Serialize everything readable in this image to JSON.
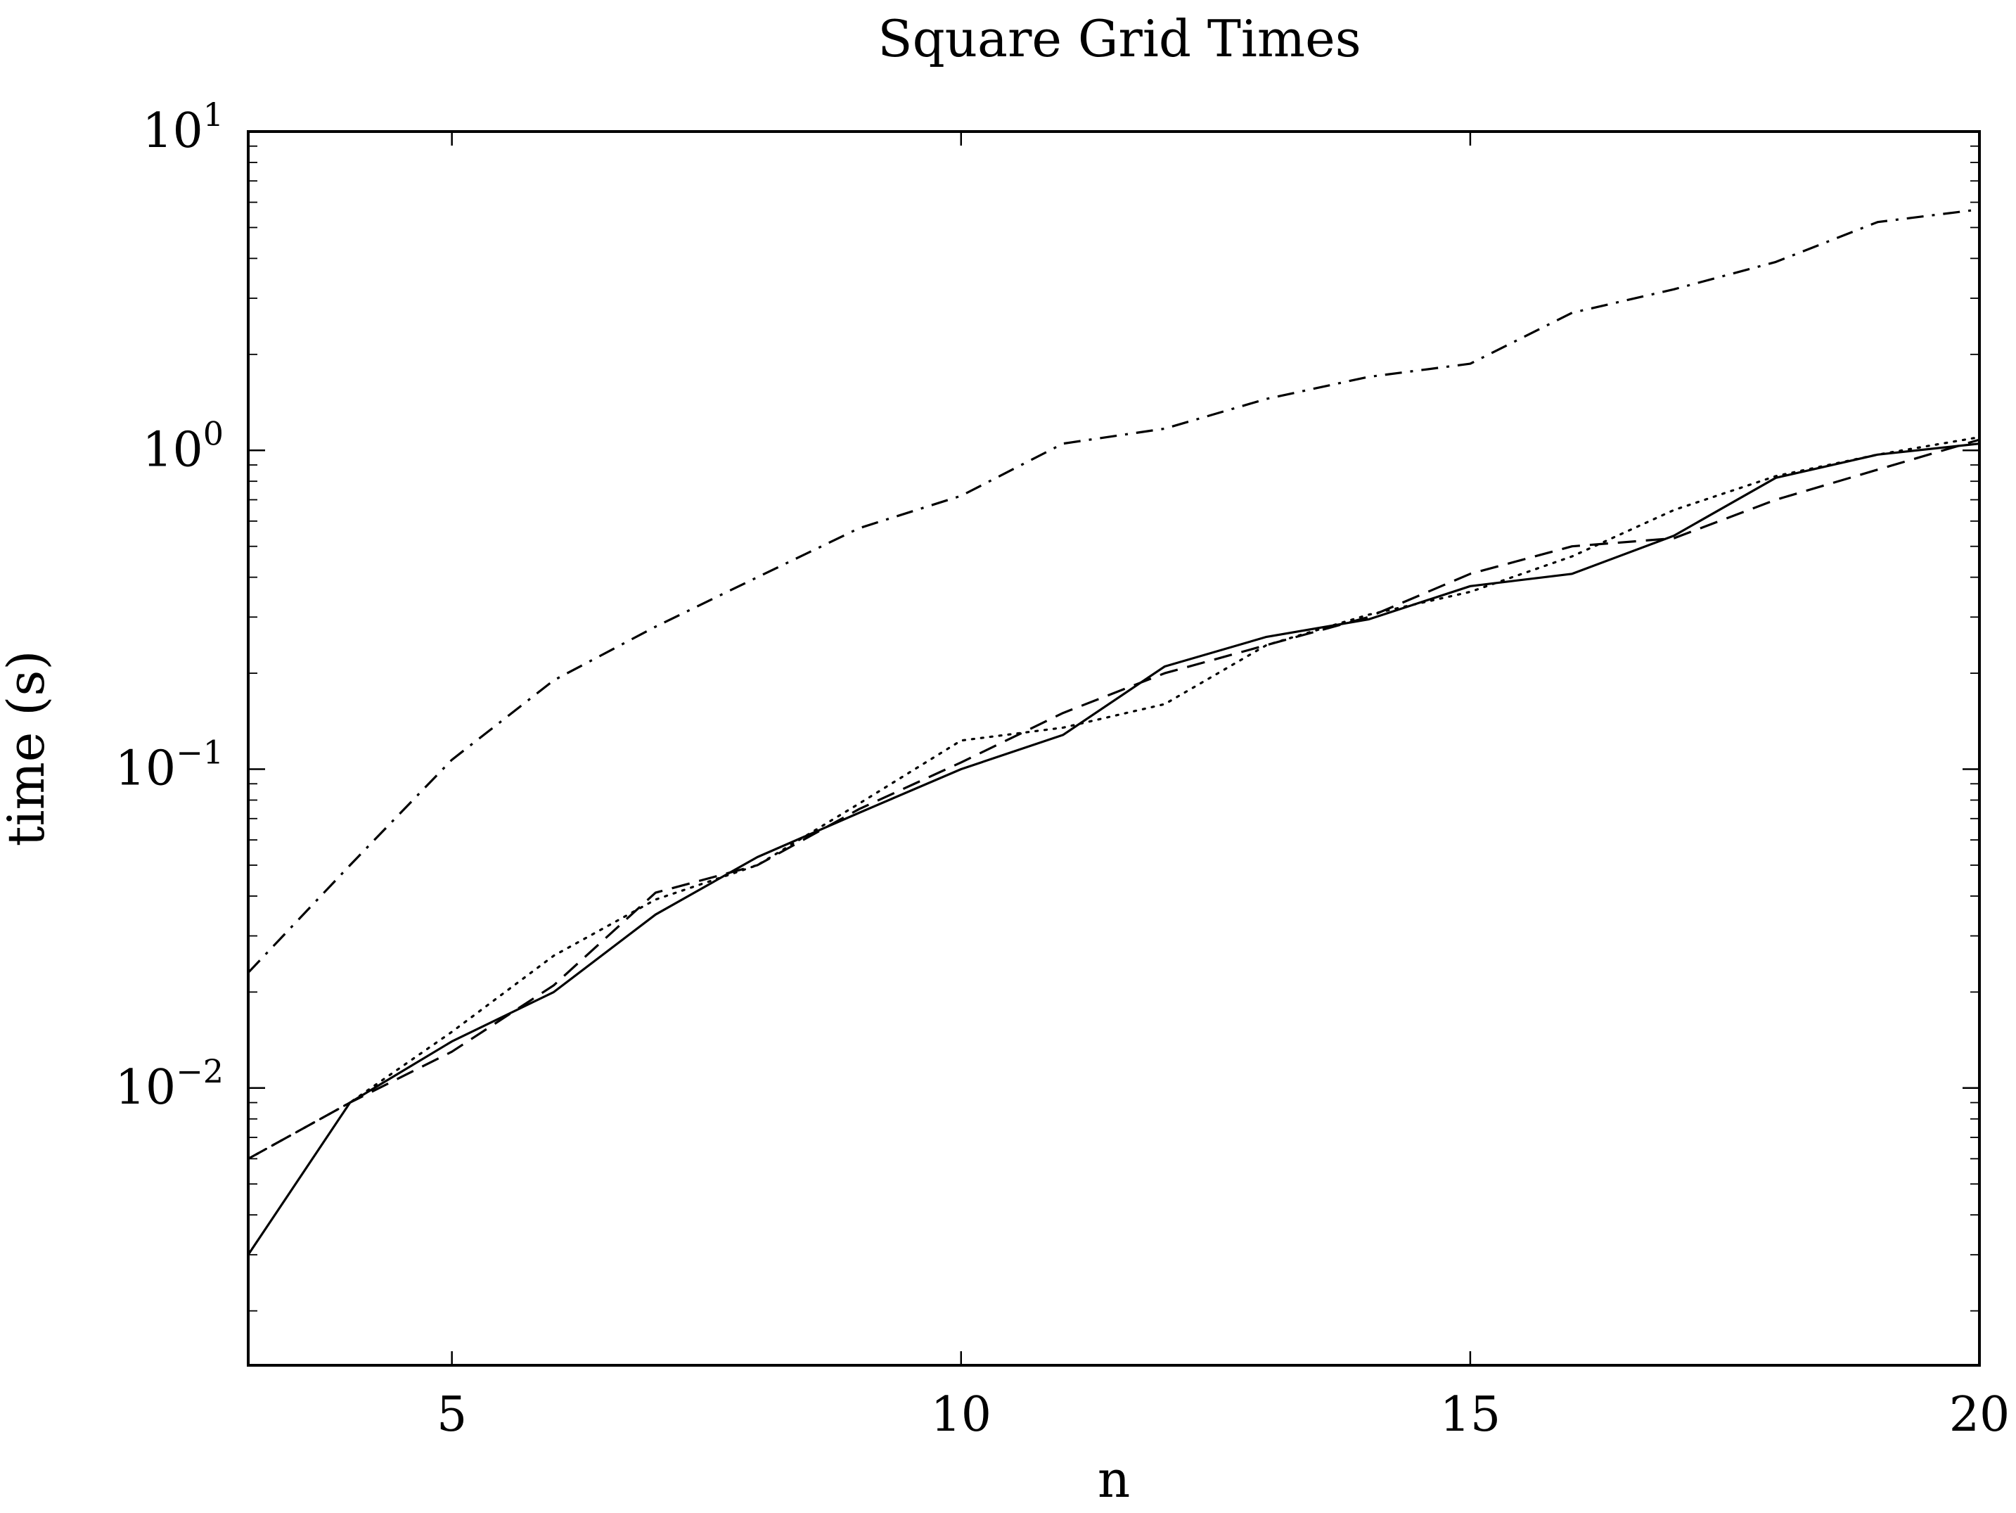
{
  "chart_data": {
    "type": "line",
    "title": "Square Grid Times",
    "xlabel": "n",
    "ylabel": "time (s)",
    "xlim": [
      3,
      20
    ],
    "ylim": [
      0.00135,
      10
    ],
    "yscale": "log",
    "grid": false,
    "legend": "none",
    "x_ticks": [
      {
        "value": 5,
        "label": "5"
      },
      {
        "value": 10,
        "label": "10"
      },
      {
        "value": 15,
        "label": "15"
      },
      {
        "value": 20,
        "label": "20"
      }
    ],
    "y_ticks": [
      {
        "value": 0.01,
        "base": "10",
        "exp": "−2"
      },
      {
        "value": 0.1,
        "base": "10",
        "exp": "−1"
      },
      {
        "value": 1,
        "base": "10",
        "exp": "0"
      },
      {
        "value": 10,
        "base": "10",
        "exp": "1"
      }
    ],
    "x": [
      3,
      4,
      5,
      6,
      7,
      8,
      9,
      10,
      11,
      12,
      13,
      14,
      15,
      16,
      17,
      18,
      19,
      20
    ],
    "series": [
      {
        "style": "solid",
        "color": "#000000",
        "values": [
          0.003,
          0.009,
          0.014,
          0.02,
          0.035,
          0.053,
          0.073,
          0.1,
          0.128,
          0.21,
          0.26,
          0.295,
          0.375,
          0.41,
          0.54,
          0.82,
          0.97,
          1.05
        ]
      },
      {
        "style": "dashed",
        "color": "#000000",
        "values": [
          0.006,
          0.009,
          0.013,
          0.021,
          0.041,
          0.05,
          0.075,
          0.105,
          0.15,
          0.2,
          0.245,
          0.3,
          0.41,
          0.5,
          0.53,
          0.7,
          0.87,
          1.08
        ]
      },
      {
        "style": "dotted",
        "color": "#000000",
        "values": [
          0.006,
          0.009,
          0.015,
          0.026,
          0.039,
          0.05,
          0.078,
          0.123,
          0.135,
          0.16,
          0.245,
          0.305,
          0.36,
          0.465,
          0.65,
          0.83,
          0.97,
          1.1
        ]
      },
      {
        "style": "dashdot",
        "color": "#000000",
        "values": [
          0.023,
          0.05,
          0.107,
          0.19,
          0.28,
          0.4,
          0.57,
          0.72,
          1.05,
          1.17,
          1.45,
          1.7,
          1.87,
          2.7,
          3.2,
          3.9,
          5.2,
          5.7
        ]
      }
    ]
  }
}
